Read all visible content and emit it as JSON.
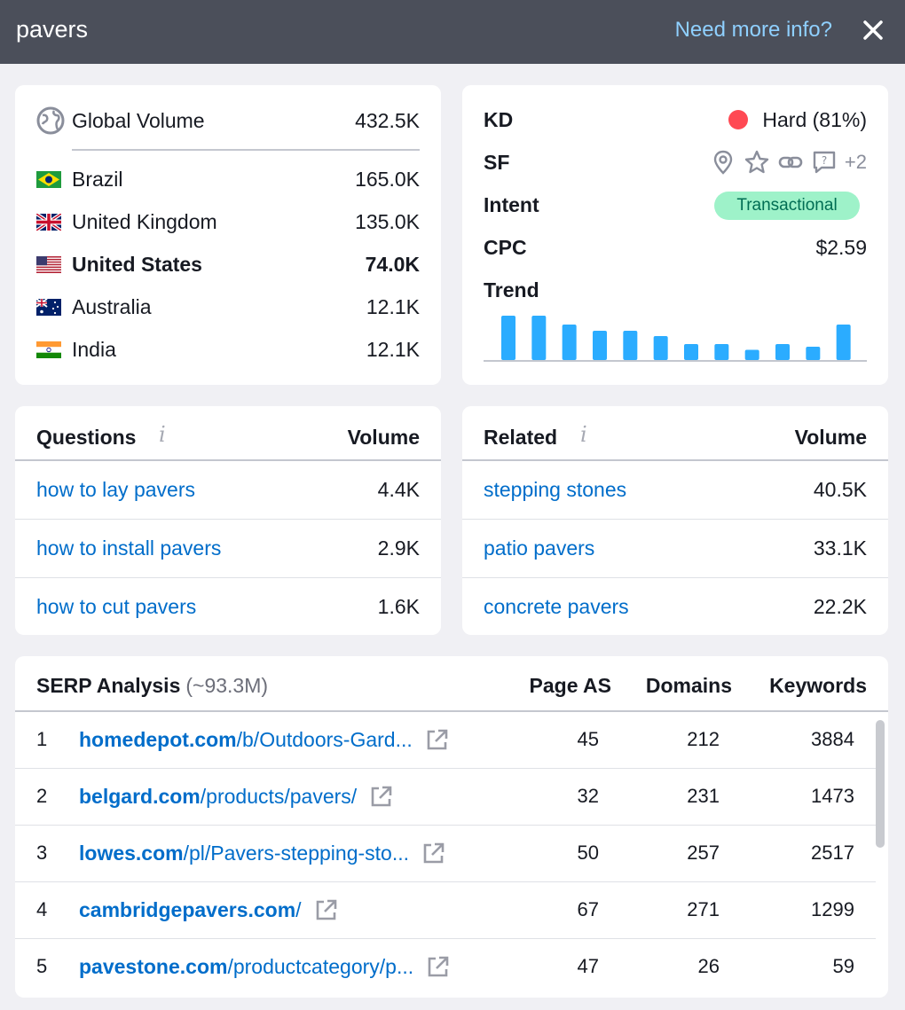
{
  "header": {
    "keyword": "pavers",
    "info_link": "Need more info?"
  },
  "volume": {
    "global_label": "Global Volume",
    "global_value": "432.5K",
    "countries": [
      {
        "name": "Brazil",
        "value": "165.0K",
        "flag": "brazil-flag",
        "bold": false
      },
      {
        "name": "United Kingdom",
        "value": "135.0K",
        "flag": "uk-flag",
        "bold": false
      },
      {
        "name": "United States",
        "value": "74.0K",
        "flag": "us-flag",
        "bold": true
      },
      {
        "name": "Australia",
        "value": "12.1K",
        "flag": "australia-flag",
        "bold": false
      },
      {
        "name": "India",
        "value": "12.1K",
        "flag": "india-flag",
        "bold": false
      }
    ]
  },
  "metrics": {
    "kd_label": "KD",
    "kd_value": "Hard (81%)",
    "kd_color": "#ff4953",
    "sf_label": "SF",
    "sf_icons": [
      "location-pin-icon",
      "star-icon",
      "link-icon",
      "question-box-icon"
    ],
    "sf_more": "+2",
    "intent_label": "Intent",
    "intent_value": "Transactional",
    "cpc_label": "CPC",
    "cpc_value": "$2.59",
    "trend_label": "Trend",
    "trend_values": [
      1.0,
      1.0,
      0.8,
      0.66,
      0.66,
      0.54,
      0.36,
      0.36,
      0.23,
      0.36,
      0.3,
      0.8
    ],
    "trend_color": "#2bacff"
  },
  "questions": {
    "title": "Questions",
    "info": "i",
    "volume_header": "Volume",
    "items": [
      {
        "keyword": "how to lay pavers",
        "volume": "4.4K"
      },
      {
        "keyword": "how to install pavers",
        "volume": "2.9K"
      },
      {
        "keyword": "how to cut pavers",
        "volume": "1.6K"
      }
    ]
  },
  "related": {
    "title": "Related",
    "info": "i",
    "volume_header": "Volume",
    "items": [
      {
        "keyword": "stepping stones",
        "volume": "40.5K"
      },
      {
        "keyword": "patio pavers",
        "volume": "33.1K"
      },
      {
        "keyword": "concrete pavers",
        "volume": "22.2K"
      }
    ]
  },
  "serp": {
    "title": "SERP Analysis",
    "count": "(~93.3M)",
    "columns": {
      "page_as": "Page AS",
      "domains": "Domains",
      "keywords": "Keywords"
    },
    "rows": [
      {
        "pos": "1",
        "domain": "homedepot.com",
        "path": "/b/Outdoors-Gard...",
        "page_as": "45",
        "domains": "212",
        "keywords": "3884"
      },
      {
        "pos": "2",
        "domain": "belgard.com",
        "path": "/products/pavers/",
        "page_as": "32",
        "domains": "231",
        "keywords": "1473"
      },
      {
        "pos": "3",
        "domain": "lowes.com",
        "path": "/pl/Pavers-stepping-sto...",
        "page_as": "50",
        "domains": "257",
        "keywords": "2517"
      },
      {
        "pos": "4",
        "domain": "cambridgepavers.com",
        "path": "/",
        "page_as": "67",
        "domains": "271",
        "keywords": "1299"
      },
      {
        "pos": "5",
        "domain": "pavestone.com",
        "path": "/productcategory/p...",
        "page_as": "47",
        "domains": "26",
        "keywords": "59"
      }
    ]
  }
}
